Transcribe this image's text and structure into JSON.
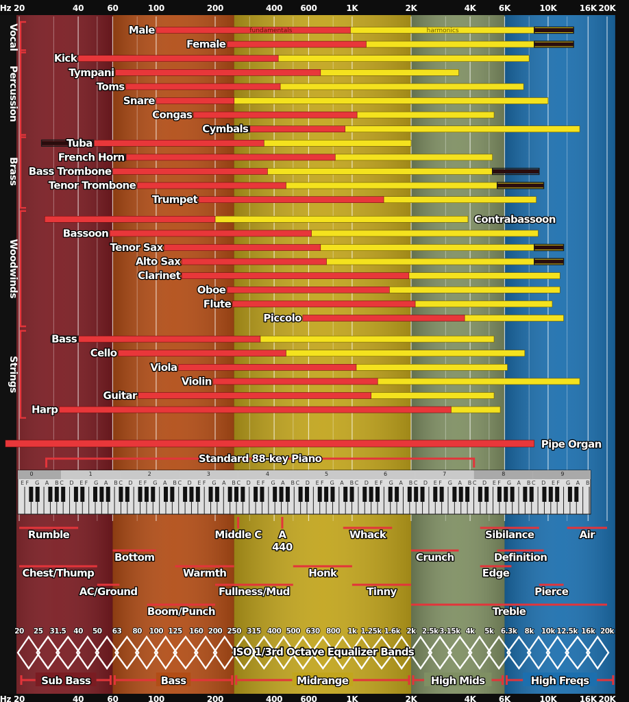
{
  "chart_data": {
    "type": "bar",
    "scale": "log",
    "xlim": [
      18,
      21500
    ],
    "x_unit": "Hz",
    "freq_ticks": [
      {
        "label": "Hz",
        "value": 18
      },
      {
        "label": "20",
        "value": 20
      },
      {
        "label": "40",
        "value": 40
      },
      {
        "label": "60",
        "value": 60
      },
      {
        "label": "100",
        "value": 100
      },
      {
        "label": "200",
        "value": 200
      },
      {
        "label": "400",
        "value": 400
      },
      {
        "label": "600",
        "value": 600
      },
      {
        "label": "1K",
        "value": 1000
      },
      {
        "label": "2K",
        "value": 2000
      },
      {
        "label": "4K",
        "value": 4000
      },
      {
        "label": "6K",
        "value": 6000
      },
      {
        "label": "10K",
        "value": 10000
      },
      {
        "label": "16K",
        "value": 16000
      },
      {
        "label": "20K",
        "value": 20000
      }
    ],
    "regions": [
      {
        "name": "Sub Bass",
        "from": 16,
        "to": 60,
        "color": "#7a1c22"
      },
      {
        "name": "Bass",
        "from": 60,
        "to": 250,
        "color": "#b24d16"
      },
      {
        "name": "Midrange",
        "from": 250,
        "to": 2000,
        "color": "#c2a51d"
      },
      {
        "name": "High Mids",
        "from": 2000,
        "to": 6000,
        "color": "#7f8f63"
      },
      {
        "name": "High Freqs",
        "from": 6000,
        "to": 22000,
        "color": "#1c6fae"
      }
    ],
    "series": [
      {
        "name": "fundamentals",
        "color": "#e8373a"
      },
      {
        "name": "harmonics",
        "color": "#f4e21e"
      }
    ],
    "groups": [
      {
        "name": "Vocal",
        "start": 0,
        "end": 1
      },
      {
        "name": "Percussion",
        "start": 2,
        "end": 7
      },
      {
        "name": "Brass",
        "start": 8,
        "end": 12
      },
      {
        "name": "Woodwinds",
        "start": 13,
        "end": 20
      },
      {
        "name": "Strings",
        "start": 21,
        "end": 26
      }
    ],
    "instruments": [
      {
        "name": "Male",
        "label_side": "left",
        "fund": [
          100,
          980
        ],
        "harm": [
          980,
          13500
        ],
        "dark": [
          8500,
          13500
        ]
      },
      {
        "name": "Female",
        "label_side": "left",
        "fund": [
          230,
          1180
        ],
        "harm": [
          1180,
          13500
        ],
        "dark": [
          8500,
          13500
        ]
      },
      {
        "name": "Kick",
        "label_side": "left",
        "fund": [
          40,
          420
        ],
        "harm": [
          420,
          8000
        ]
      },
      {
        "name": "Tympani",
        "label_side": "left",
        "fund": [
          62,
          690
        ],
        "harm": [
          690,
          3500
        ]
      },
      {
        "name": "Toms",
        "label_side": "left",
        "fund": [
          70,
          430
        ],
        "harm": [
          430,
          7500
        ]
      },
      {
        "name": "Snare",
        "label_side": "left",
        "fund": [
          100,
          250
        ],
        "harm": [
          250,
          10000
        ]
      },
      {
        "name": "Congas",
        "label_side": "left",
        "fund": [
          155,
          1060
        ],
        "harm": [
          1060,
          5300
        ]
      },
      {
        "name": "Cymbals",
        "label_side": "left",
        "fund": [
          300,
          920
        ],
        "harm": [
          920,
          14500
        ],
        "dark": [
          180,
          300
        ]
      },
      {
        "name": "Tuba",
        "label_side": "left",
        "fund": [
          48,
          355
        ],
        "harm": [
          355,
          2000
        ],
        "dark": [
          26,
          48
        ]
      },
      {
        "name": "French Horn",
        "label_side": "left",
        "fund": [
          70,
          820
        ],
        "harm": [
          820,
          5200
        ],
        "dark": [
          60,
          70
        ]
      },
      {
        "name": "Bass Trombone",
        "label_side": "left",
        "fund": [
          60,
          370
        ],
        "harm": [
          370,
          5200
        ],
        "dark": [
          5200,
          9000
        ]
      },
      {
        "name": "Tenor Trombone",
        "label_side": "left",
        "fund": [
          80,
          460
        ],
        "harm": [
          460,
          9500
        ],
        "dark": [
          5500,
          9500
        ]
      },
      {
        "name": "Trumpet",
        "label_side": "left",
        "fund": [
          165,
          1450
        ],
        "harm": [
          1450,
          8700
        ]
      },
      {
        "name": "Contrabassoon",
        "label_side": "right",
        "fund": [
          27,
          200
        ],
        "harm": [
          200,
          3900
        ]
      },
      {
        "name": "Bassoon",
        "label_side": "left",
        "fund": [
          58,
          620
        ],
        "harm": [
          620,
          8900
        ]
      },
      {
        "name": "Tenor Sax",
        "label_side": "left",
        "fund": [
          110,
          690
        ],
        "harm": [
          690,
          12000
        ],
        "dark": [
          8500,
          12000
        ]
      },
      {
        "name": "Alto Sax",
        "label_side": "left",
        "fund": [
          135,
          740
        ],
        "harm": [
          740,
          12000
        ],
        "dark": [
          8500,
          12000
        ]
      },
      {
        "name": "Clarinet",
        "label_side": "left",
        "fund": [
          135,
          1950
        ],
        "harm": [
          1950,
          11500
        ]
      },
      {
        "name": "Oboe",
        "label_side": "left",
        "fund": [
          230,
          1550
        ],
        "harm": [
          1550,
          11500
        ]
      },
      {
        "name": "Flute",
        "label_side": "left",
        "fund": [
          245,
          2100
        ],
        "harm": [
          2100,
          10500
        ]
      },
      {
        "name": "Piccolo",
        "label_side": "left",
        "fund": [
          560,
          3750
        ],
        "harm": [
          3750,
          12000
        ]
      },
      {
        "name": "Bass",
        "label_side": "left",
        "fund": [
          40,
          340
        ],
        "harm": [
          340,
          5300
        ],
        "dark": [
          29,
          40
        ]
      },
      {
        "name": "Cello",
        "label_side": "left",
        "fund": [
          64,
          460
        ],
        "harm": [
          460,
          7600
        ]
      },
      {
        "name": "Viola",
        "label_side": "left",
        "fund": [
          130,
          1050
        ],
        "harm": [
          1050,
          6200
        ]
      },
      {
        "name": "Violin",
        "label_side": "left",
        "fund": [
          195,
          1350
        ],
        "harm": [
          1350,
          14500
        ]
      },
      {
        "name": "Guitar",
        "label_side": "left",
        "fund": [
          81,
          1250
        ],
        "harm": [
          1250,
          5300
        ]
      },
      {
        "name": "Harp",
        "label_side": "left",
        "fund": [
          32,
          3200
        ],
        "harm": [
          3200,
          5700
        ]
      }
    ],
    "pipe_organ": {
      "name": "Pipe Organ",
      "range": [
        17,
        8500
      ]
    },
    "piano": {
      "name": "Standard 88-key Piano",
      "range": [
        27.5,
        4186
      ],
      "octave_labels": [
        "0",
        "1",
        "2",
        "3",
        "4",
        "5",
        "6",
        "7",
        "8",
        "9"
      ],
      "note_names": [
        "C",
        "D",
        "E",
        "F",
        "G",
        "A",
        "B"
      ]
    },
    "descriptors": [
      {
        "label": "Rumble",
        "lines": [
          "Rumble"
        ],
        "range": [
          20,
          40
        ],
        "row": 0
      },
      {
        "label": "Chest/Thump",
        "lines": [
          "Chest/Thump"
        ],
        "range": [
          20,
          50
        ],
        "row": 2
      },
      {
        "label": "Bottom",
        "lines": [
          "Bottom"
        ],
        "range": [
          60,
          100
        ],
        "row": 1
      },
      {
        "label": "AC/Ground",
        "lines": [
          "AC/Ground"
        ],
        "range": [
          50,
          65
        ],
        "row": 3
      },
      {
        "label": "Boom/Punch",
        "lines": [
          "Boom/Punch"
        ],
        "range": [
          90,
          200
        ],
        "row": 4
      },
      {
        "label": "Warmth",
        "lines": [
          "Warmth"
        ],
        "range": [
          125,
          250
        ],
        "row": 2
      },
      {
        "label": "Middle C",
        "lines": [
          "Middle C"
        ],
        "range": [
          262,
          262
        ],
        "row": 0
      },
      {
        "label": "A 440",
        "lines": [
          "A",
          "440"
        ],
        "range": [
          440,
          440
        ],
        "row": 0
      },
      {
        "label": "Fullness/Mud",
        "lines": [
          "Fullness/Mud"
        ],
        "range": [
          200,
          500
        ],
        "row": 3
      },
      {
        "label": "Honk",
        "lines": [
          "Honk"
        ],
        "range": [
          500,
          1000
        ],
        "row": 2
      },
      {
        "label": "Whack",
        "lines": [
          "Whack"
        ],
        "range": [
          900,
          1600
        ],
        "row": 0
      },
      {
        "label": "Tinny",
        "lines": [
          "Tinny"
        ],
        "range": [
          1000,
          2000
        ],
        "row": 3
      },
      {
        "label": "Crunch",
        "lines": [
          "Crunch"
        ],
        "range": [
          2000,
          3500
        ],
        "row": 1
      },
      {
        "label": "Sibilance",
        "lines": [
          "Sibilance"
        ],
        "range": [
          4500,
          9000
        ],
        "row": 0
      },
      {
        "label": "Definition",
        "lines": [
          "Definition"
        ],
        "range": [
          5500,
          9500
        ],
        "row": 1
      },
      {
        "label": "Edge",
        "lines": [
          "Edge"
        ],
        "range": [
          4500,
          6500
        ],
        "row": 2
      },
      {
        "label": "Pierce",
        "lines": [
          "Pierce"
        ],
        "range": [
          9000,
          12000
        ],
        "row": 3
      },
      {
        "label": "Air",
        "lines": [
          "Air"
        ],
        "range": [
          12500,
          20000
        ],
        "row": 0
      },
      {
        "label": "Treble",
        "lines": [
          "Treble"
        ],
        "range": [
          2000,
          20000
        ],
        "row": 4
      }
    ],
    "eq_band_labels": [
      "20",
      "25",
      "31.5",
      "40",
      "50",
      "63",
      "80",
      "100",
      "125",
      "160",
      "200",
      "250",
      "315",
      "400",
      "500",
      "630",
      "800",
      "1k",
      "1.25k",
      "1.6k",
      "2k",
      "2.5k",
      "3.15k",
      "4k",
      "5k",
      "6.3k",
      "8k",
      "10k",
      "12.5k",
      "16k",
      "20k"
    ],
    "eq_band_values": [
      20,
      25,
      31.5,
      40,
      50,
      63,
      80,
      100,
      125,
      160,
      200,
      250,
      315,
      400,
      500,
      630,
      800,
      1000,
      1250,
      1600,
      2000,
      2500,
      3150,
      4000,
      5000,
      6300,
      8000,
      10000,
      12500,
      16000,
      20000
    ],
    "eq_title": "ISO 1/3rd Octave Equalizer Bands",
    "colors": {
      "fundamental": "#e8373a",
      "harmonic": "#f4e21e",
      "dark": "#2a0d0d",
      "text": "#ffffff"
    }
  }
}
